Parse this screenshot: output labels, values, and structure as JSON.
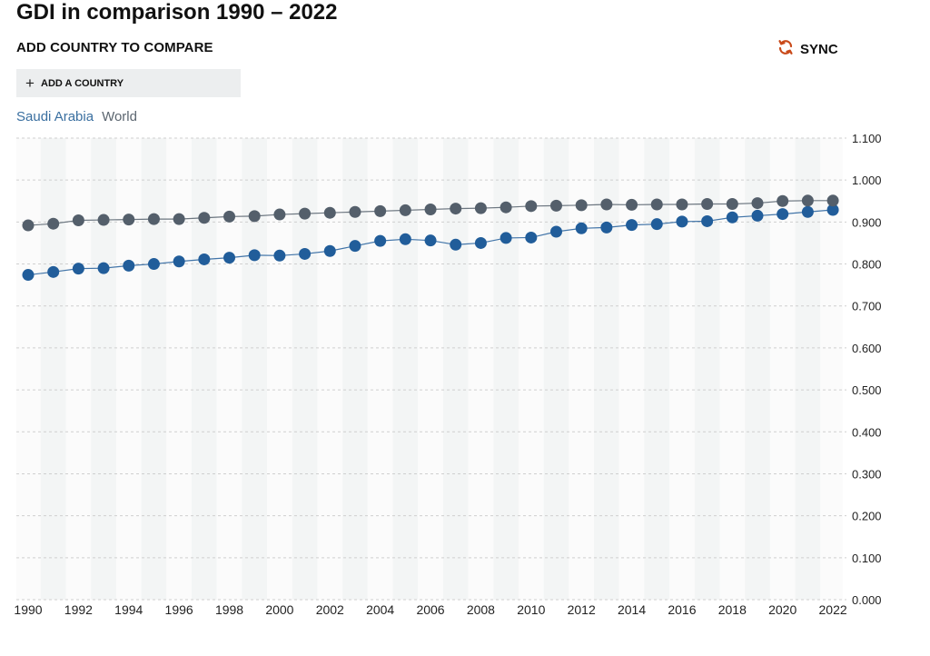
{
  "header": {
    "title": "GDI in comparison 1990 – 2022",
    "subtitle": "ADD COUNTRY TO COMPARE",
    "sync_label": "SYNC",
    "add_country_label": "ADD A COUNTRY",
    "plus_icon": "+"
  },
  "colors": {
    "saudi": "#215d9a",
    "world": "#545f6b",
    "sync_icon": "#c94a1a",
    "band": "#f3f5f5",
    "grid": "#cfcfcf"
  },
  "icons": {
    "sync": "refresh-arrows-icon",
    "add": "plus-icon"
  },
  "chart_data": {
    "type": "line",
    "x": [
      1990,
      1991,
      1992,
      1993,
      1994,
      1995,
      1996,
      1997,
      1998,
      1999,
      2000,
      2001,
      2002,
      2003,
      2004,
      2005,
      2006,
      2007,
      2008,
      2009,
      2010,
      2011,
      2012,
      2013,
      2014,
      2015,
      2016,
      2017,
      2018,
      2019,
      2020,
      2021,
      2022
    ],
    "x_tick_labels": [
      "1990",
      "1992",
      "1994",
      "1996",
      "1998",
      "2000",
      "2002",
      "2004",
      "2006",
      "2008",
      "2010",
      "2012",
      "2014",
      "2016",
      "2018",
      "2020",
      "2022"
    ],
    "y_tick_labels": [
      "1.100",
      "1.000",
      "0.900",
      "0.800",
      "0.700",
      "0.600",
      "0.500",
      "0.400",
      "0.300",
      "0.200",
      "0.100",
      "0.000"
    ],
    "ylim": [
      0,
      1.1
    ],
    "legend_position": "top-left",
    "series": [
      {
        "name": "Saudi Arabia",
        "values": [
          0.774,
          0.781,
          0.789,
          0.79,
          0.796,
          0.8,
          0.806,
          0.811,
          0.815,
          0.821,
          0.82,
          0.824,
          0.831,
          0.843,
          0.855,
          0.859,
          0.856,
          0.846,
          0.85,
          0.862,
          0.863,
          0.877,
          0.885,
          0.887,
          0.893,
          0.895,
          0.901,
          0.902,
          0.911,
          0.915,
          0.919,
          0.924,
          0.929
        ]
      },
      {
        "name": "World",
        "values": [
          0.892,
          0.896,
          0.904,
          0.905,
          0.906,
          0.907,
          0.907,
          0.91,
          0.913,
          0.914,
          0.918,
          0.92,
          0.922,
          0.924,
          0.926,
          0.928,
          0.93,
          0.932,
          0.933,
          0.935,
          0.938,
          0.939,
          0.94,
          0.942,
          0.941,
          0.942,
          0.942,
          0.943,
          0.943,
          0.945,
          0.95,
          0.951,
          0.951
        ]
      }
    ]
  }
}
